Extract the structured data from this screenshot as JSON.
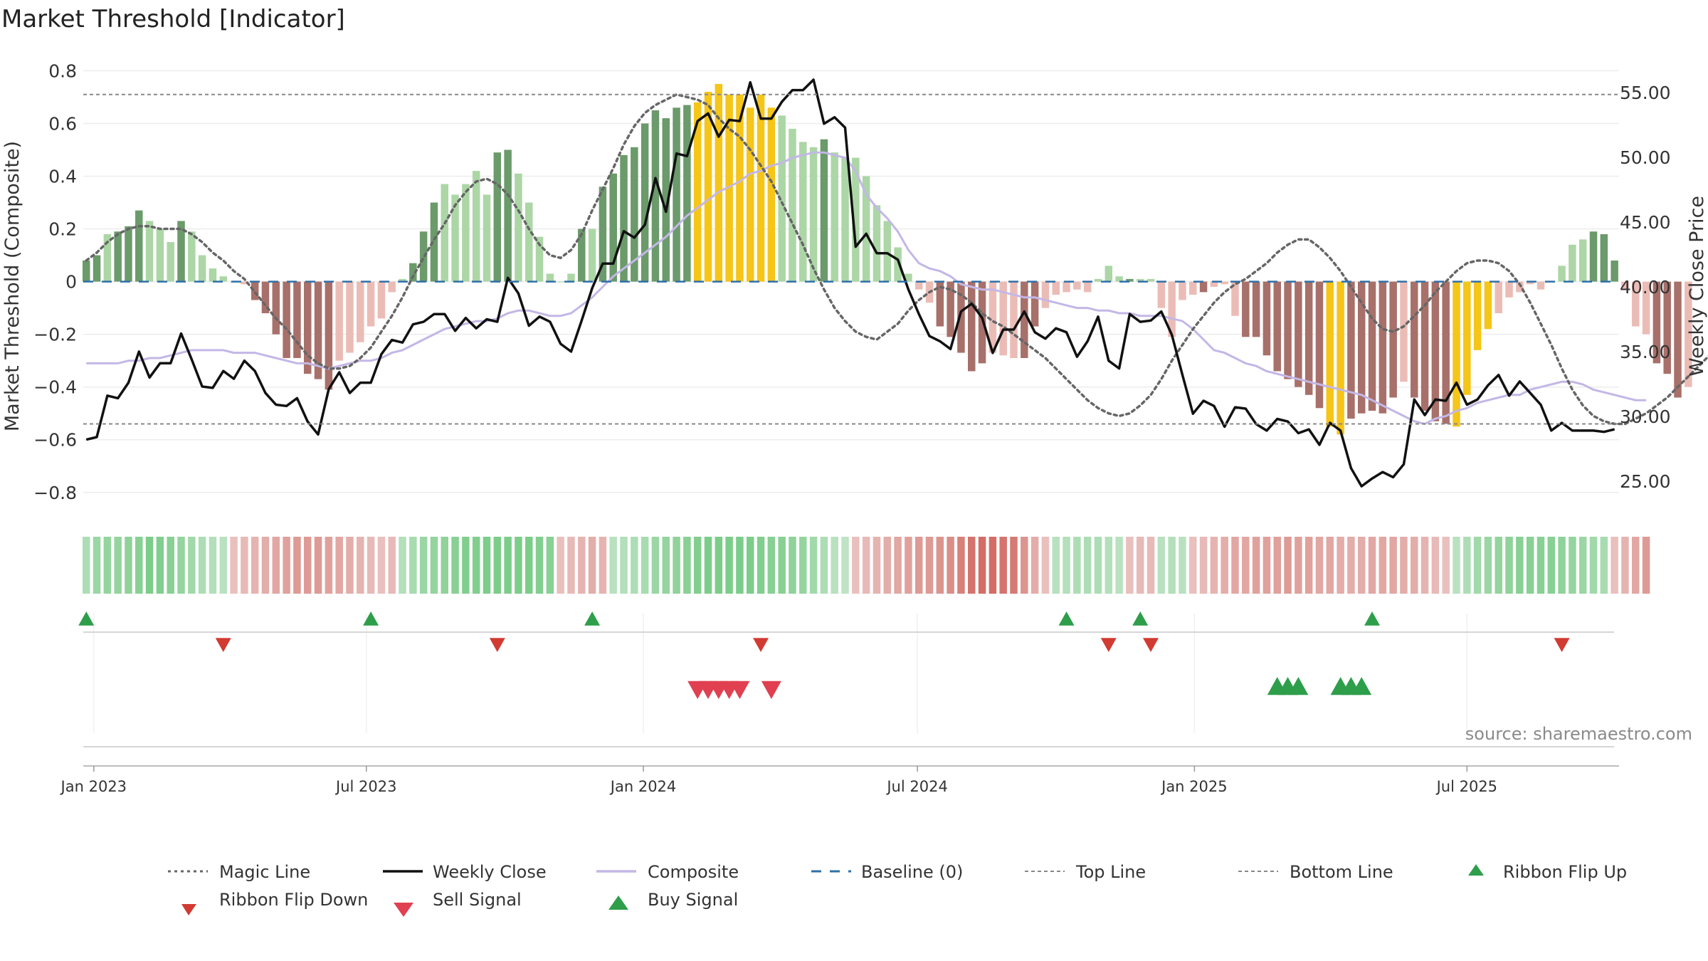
{
  "title": "Market Threshold [Indicator]",
  "source_label": "source: sharemaestro.com",
  "colors": {
    "dark_green": "#6b9a6b",
    "light_green": "#acd6a6",
    "dark_red": "#a8706a",
    "light_red": "#ebbcb6",
    "gold": "#f5c518",
    "weekly_close": "#111111",
    "composite": "#c3b7e6",
    "magic_line": "#666666",
    "baseline": "#2f6fa8",
    "threshold_line": "#888888",
    "buy": "#2e9e4a",
    "flip_down": "#d13b32",
    "sell": "#e04050"
  },
  "legend": {
    "magic": "Magic Line",
    "weekly": "Weekly Close",
    "composite": "Composite",
    "baseline": "Baseline (0)",
    "top": "Top Line",
    "bottom": "Bottom Line",
    "flip_up": "Ribbon Flip Up",
    "flip_down": "Ribbon Flip Down",
    "sell": "Sell Signal",
    "buy": "Buy Signal"
  },
  "chart_data": {
    "type": "bar",
    "title": "Market Threshold [Indicator]",
    "ylabel": "Market Threshold (Composite)",
    "y2label": "Weekly Close Price",
    "ylim": [
      -0.86,
      0.82
    ],
    "y2lim": [
      22.9,
      57.1
    ],
    "yticks": [
      -0.8,
      -0.6,
      -0.4,
      -0.2,
      0,
      0.2,
      0.4,
      0.6,
      0.8
    ],
    "ytick_labels": [
      "−0.8",
      "−0.6",
      "−0.4",
      "−0.2",
      "0",
      "0.2",
      "0.4",
      "0.6",
      "0.8"
    ],
    "y2ticks": [
      25,
      30,
      35,
      40,
      45,
      50,
      55
    ],
    "y2tick_labels": [
      "25.00",
      "30.00",
      "35.00",
      "40.00",
      "45.00",
      "50.00",
      "55.00"
    ],
    "x_axis": {
      "start_date": "2022-12-27",
      "end_date": "2025-10-07",
      "range": [
        "2022-12-25",
        "2025-10-10"
      ],
      "tick_dates": [
        "2023-01-01",
        "2023-07-01",
        "2024-01-01",
        "2024-07-01",
        "2025-01-01",
        "2025-07-01"
      ],
      "tick_labels": [
        "Jan 2023",
        "Jul 2023",
        "Jan 2024",
        "Jul 2024",
        "Jan 2025",
        "Jul 2025"
      ]
    },
    "top_line": 0.71,
    "bottom_line": -0.54,
    "baseline": 0,
    "composite_bars": [
      0.08,
      0.1,
      0.18,
      0.19,
      0.21,
      0.27,
      0.23,
      0.2,
      0.15,
      0.23,
      0.19,
      0.1,
      0.05,
      0.02,
      0,
      -0.01,
      -0.07,
      -0.12,
      -0.2,
      -0.29,
      -0.29,
      -0.35,
      -0.37,
      -0.41,
      -0.3,
      -0.27,
      -0.23,
      -0.17,
      -0.14,
      -0.04,
      0.01,
      0.07,
      0.19,
      0.3,
      0.37,
      0.33,
      0.37,
      0.42,
      0.33,
      0.49,
      0.5,
      0.41,
      0.3,
      0.17,
      0.03,
      0,
      0.03,
      0.2,
      0.2,
      0.36,
      0.41,
      0.48,
      0.51,
      0.6,
      0.65,
      0.62,
      0.66,
      0.67,
      0.68,
      0.72,
      0.75,
      0.71,
      0.71,
      0.66,
      0.71,
      0.66,
      0.63,
      0.58,
      0.53,
      0.51,
      0.54,
      0.49,
      0.47,
      0.47,
      0.4,
      0.29,
      0.23,
      0.13,
      0.03,
      -0.03,
      -0.08,
      -0.17,
      -0.21,
      -0.27,
      -0.34,
      -0.31,
      -0.27,
      -0.28,
      -0.29,
      -0.29,
      -0.17,
      -0.1,
      -0.05,
      -0.04,
      -0.03,
      -0.04,
      0.01,
      0.06,
      0.02,
      0.01,
      0.01,
      0.01,
      -0.1,
      -0.21,
      -0.07,
      -0.05,
      -0.04,
      -0.02,
      -0.01,
      -0.13,
      -0.21,
      -0.21,
      -0.28,
      -0.34,
      -0.37,
      -0.4,
      -0.43,
      -0.48,
      -0.55,
      -0.58,
      -0.52,
      -0.5,
      -0.49,
      -0.5,
      -0.44,
      -0.38,
      -0.44,
      -0.49,
      -0.53,
      -0.54,
      -0.55,
      -0.43,
      -0.26,
      -0.18,
      -0.12,
      -0.06,
      -0.04,
      -0.01,
      -0.03,
      0,
      0.06,
      0.14,
      0.16,
      0.19,
      0.18,
      0.08,
      -0.03,
      -0.17,
      -0.2,
      -0.31,
      -0.35,
      -0.44,
      -0.4
    ],
    "bar_tones": "DDLDDDLLLDLLLLLLDDDDDDDDLLLLLLLDDDLLLLLDDLLLLLLDLDDDDDDDDDGGGGGGGGLLLLDLLLLLLLLLLDDDDDLLLDDLLLLLLLLDLLLLLLDLLLDDDDDDDDGGDDDDDLDDDDGGGGLLLLLLLLLDDDLLLDDDL",
    "weekly_close": [
      28.2,
      28.4,
      31.6,
      31.4,
      32.6,
      35,
      33,
      34.1,
      34.1,
      36.4,
      34.4,
      32.3,
      32.2,
      33.5,
      32.9,
      34.3,
      33.5,
      31.8,
      30.9,
      30.8,
      31.4,
      29.6,
      28.6,
      32.1,
      33.4,
      31.8,
      32.6,
      32.6,
      34.8,
      35.9,
      35.7,
      37.1,
      37.3,
      37.9,
      37.9,
      36.6,
      37.6,
      36.8,
      37.5,
      37.3,
      40.7,
      39.5,
      37,
      37.7,
      37.3,
      35.6,
      35,
      37.4,
      39.9,
      41.8,
      41.8,
      44.3,
      43.8,
      44.8,
      48.4,
      45.8,
      50.3,
      50.1,
      52.8,
      53.4,
      51.6,
      52.9,
      52.8,
      55.8,
      53,
      53,
      54.3,
      55.2,
      55.2,
      56,
      52.6,
      53.1,
      52.3,
      43.1,
      44.1,
      42.6,
      42.6,
      42.1,
      39.8,
      37.9,
      36.2,
      35.8,
      35.2,
      38.1,
      38.7,
      37.6,
      34.9,
      36.7,
      36.7,
      38.1,
      36.5,
      36,
      36.8,
      36.5,
      34.6,
      35.8,
      37.7,
      34.3,
      33.7,
      37.9,
      37.3,
      37.4,
      38.1,
      36.3,
      33.2,
      30.2,
      31.2,
      30.8,
      29.2,
      30.7,
      30.6,
      29.4,
      28.9,
      29.8,
      29.6,
      28.7,
      29,
      27.8,
      29.5,
      28.9,
      26,
      24.6,
      25.2,
      25.7,
      25.3,
      26.3,
      31.3,
      30.1,
      31.3,
      31.2,
      32.6,
      30.9,
      31.3,
      32.4,
      33.2,
      31.6,
      32.7,
      31.8,
      30.9,
      28.9,
      29.5,
      28.9,
      28.9,
      28.9,
      28.8,
      29
    ],
    "composite_line": [
      -0.31,
      -0.31,
      -0.31,
      -0.31,
      -0.3,
      -0.3,
      -0.29,
      -0.29,
      -0.28,
      -0.27,
      -0.26,
      -0.26,
      -0.26,
      -0.26,
      -0.27,
      -0.27,
      -0.27,
      -0.28,
      -0.29,
      -0.3,
      -0.31,
      -0.31,
      -0.32,
      -0.33,
      -0.32,
      -0.31,
      -0.3,
      -0.3,
      -0.29,
      -0.27,
      -0.26,
      -0.24,
      -0.22,
      -0.2,
      -0.18,
      -0.17,
      -0.16,
      -0.15,
      -0.15,
      -0.14,
      -0.12,
      -0.11,
      -0.11,
      -0.12,
      -0.13,
      -0.13,
      -0.12,
      -0.09,
      -0.06,
      -0.02,
      0.02,
      0.05,
      0.08,
      0.11,
      0.14,
      0.17,
      0.21,
      0.25,
      0.28,
      0.31,
      0.34,
      0.36,
      0.38,
      0.41,
      0.42,
      0.44,
      0.45,
      0.47,
      0.48,
      0.49,
      0.49,
      0.48,
      0.47,
      0.42,
      0.33,
      0.28,
      0.24,
      0.19,
      0.12,
      0.07,
      0.05,
      0.04,
      0.02,
      -0.01,
      -0.02,
      -0.03,
      -0.03,
      -0.04,
      -0.05,
      -0.06,
      -0.06,
      -0.07,
      -0.08,
      -0.09,
      -0.1,
      -0.1,
      -0.11,
      -0.11,
      -0.12,
      -0.12,
      -0.13,
      -0.13,
      -0.13,
      -0.14,
      -0.15,
      -0.18,
      -0.22,
      -0.26,
      -0.27,
      -0.29,
      -0.31,
      -0.32,
      -0.34,
      -0.35,
      -0.36,
      -0.37,
      -0.38,
      -0.39,
      -0.4,
      -0.41,
      -0.42,
      -0.43,
      -0.45,
      -0.47,
      -0.49,
      -0.51,
      -0.53,
      -0.54,
      -0.52,
      -0.51,
      -0.49,
      -0.48,
      -0.46,
      -0.45,
      -0.44,
      -0.43,
      -0.43,
      -0.41,
      -0.4,
      -0.39,
      -0.38,
      -0.38,
      -0.39,
      -0.41,
      -0.42,
      -0.43,
      -0.44,
      -0.45,
      -0.45
    ],
    "magic_line": [
      0.08,
      0.11,
      0.15,
      0.18,
      0.2,
      0.21,
      0.21,
      0.2,
      0.2,
      0.2,
      0.18,
      0.15,
      0.11,
      0.08,
      0.04,
      0.01,
      -0.04,
      -0.09,
      -0.14,
      -0.18,
      -0.23,
      -0.28,
      -0.31,
      -0.33,
      -0.33,
      -0.32,
      -0.29,
      -0.25,
      -0.19,
      -0.13,
      -0.06,
      0.02,
      0.09,
      0.16,
      0.22,
      0.29,
      0.34,
      0.38,
      0.39,
      0.37,
      0.33,
      0.27,
      0.2,
      0.14,
      0.1,
      0.09,
      0.12,
      0.18,
      0.27,
      0.35,
      0.43,
      0.52,
      0.59,
      0.64,
      0.67,
      0.69,
      0.71,
      0.7,
      0.69,
      0.67,
      0.62,
      0.58,
      0.55,
      0.5,
      0.44,
      0.38,
      0.3,
      0.22,
      0.14,
      0.05,
      -0.03,
      -0.1,
      -0.15,
      -0.19,
      -0.21,
      -0.22,
      -0.19,
      -0.16,
      -0.11,
      -0.07,
      -0.04,
      -0.02,
      -0.03,
      -0.05,
      -0.08,
      -0.12,
      -0.15,
      -0.17,
      -0.2,
      -0.23,
      -0.26,
      -0.29,
      -0.33,
      -0.37,
      -0.41,
      -0.45,
      -0.48,
      -0.5,
      -0.51,
      -0.5,
      -0.47,
      -0.43,
      -0.37,
      -0.3,
      -0.24,
      -0.18,
      -0.13,
      -0.08,
      -0.04,
      -0.01,
      0.01,
      0.04,
      0.07,
      0.11,
      0.14,
      0.16,
      0.16,
      0.13,
      0.09,
      0.04,
      -0.02,
      -0.08,
      -0.14,
      -0.18,
      -0.19,
      -0.17,
      -0.13,
      -0.09,
      -0.04,
      0,
      0.04,
      0.07,
      0.08,
      0.08,
      0.07,
      0.04,
      -0.01,
      -0.08,
      -0.16,
      -0.24,
      -0.33,
      -0.41,
      -0.47,
      -0.51,
      -0.53,
      -0.54,
      -0.54,
      -0.52,
      -0.5,
      -0.47,
      -0.44,
      -0.4,
      -0.36,
      -0.32,
      -0.28,
      -0.25
    ],
    "ribbon_levels": [
      0.4,
      0.55,
      0.6,
      0.6,
      0.65,
      0.7,
      0.8,
      0.75,
      0.7,
      0.6,
      0.5,
      0.4,
      0.35,
      0.3,
      -0.25,
      -0.3,
      -0.35,
      -0.4,
      -0.45,
      -0.5,
      -0.55,
      -0.55,
      -0.55,
      -0.5,
      -0.45,
      -0.4,
      -0.35,
      -0.3,
      -0.25,
      -0.3,
      0.35,
      0.45,
      0.55,
      0.6,
      0.65,
      0.7,
      0.75,
      0.75,
      0.8,
      0.8,
      0.8,
      0.8,
      0.8,
      0.75,
      0.7,
      -0.25,
      -0.3,
      -0.35,
      -0.4,
      -0.35,
      0.3,
      0.35,
      0.4,
      0.45,
      0.55,
      0.6,
      0.65,
      0.7,
      0.75,
      0.8,
      0.8,
      0.8,
      0.8,
      0.8,
      0.75,
      0.7,
      0.7,
      0.65,
      0.6,
      0.5,
      0.4,
      0.3,
      0.25,
      -0.25,
      -0.3,
      -0.35,
      -0.4,
      -0.45,
      -0.5,
      -0.55,
      -0.55,
      -0.6,
      -0.65,
      -0.75,
      -0.85,
      -0.9,
      -0.9,
      -0.85,
      -0.8,
      -0.6,
      -0.4,
      -0.25,
      0.3,
      0.35,
      0.4,
      0.4,
      0.4,
      0.35,
      0.3,
      -0.25,
      -0.3,
      -0.3,
      0.3,
      0.35,
      0.3,
      -0.25,
      -0.3,
      -0.35,
      -0.4,
      -0.45,
      -0.45,
      -0.5,
      -0.5,
      -0.5,
      -0.55,
      -0.5,
      -0.5,
      -0.45,
      -0.45,
      -0.4,
      -0.4,
      -0.4,
      -0.45,
      -0.45,
      -0.45,
      -0.4,
      -0.4,
      -0.35,
      -0.3,
      -0.25,
      0.3,
      0.4,
      0.5,
      0.55,
      0.6,
      0.65,
      0.7,
      0.7,
      0.7,
      0.7,
      0.65,
      0.6,
      0.55,
      0.5,
      0.45,
      -0.25,
      -0.35,
      -0.45,
      -0.55
    ],
    "signals": {
      "ribbon_flip_up": [
        "2022-12-27",
        "2023-07-04",
        "2023-11-28",
        "2024-10-08",
        "2024-11-26",
        "2025-04-29"
      ],
      "ribbon_flip_down": [
        "2023-03-28",
        "2023-09-26",
        "2024-03-19",
        "2024-11-05",
        "2024-12-03",
        "2025-09-02"
      ],
      "sell_signal": [
        "2024-02-06",
        "2024-02-13",
        "2024-02-20",
        "2024-02-27",
        "2024-03-05",
        "2024-03-26"
      ],
      "buy_signal": [
        "2025-02-25",
        "2025-03-04",
        "2025-03-11",
        "2025-04-08",
        "2025-04-15",
        "2025-04-22"
      ]
    }
  }
}
